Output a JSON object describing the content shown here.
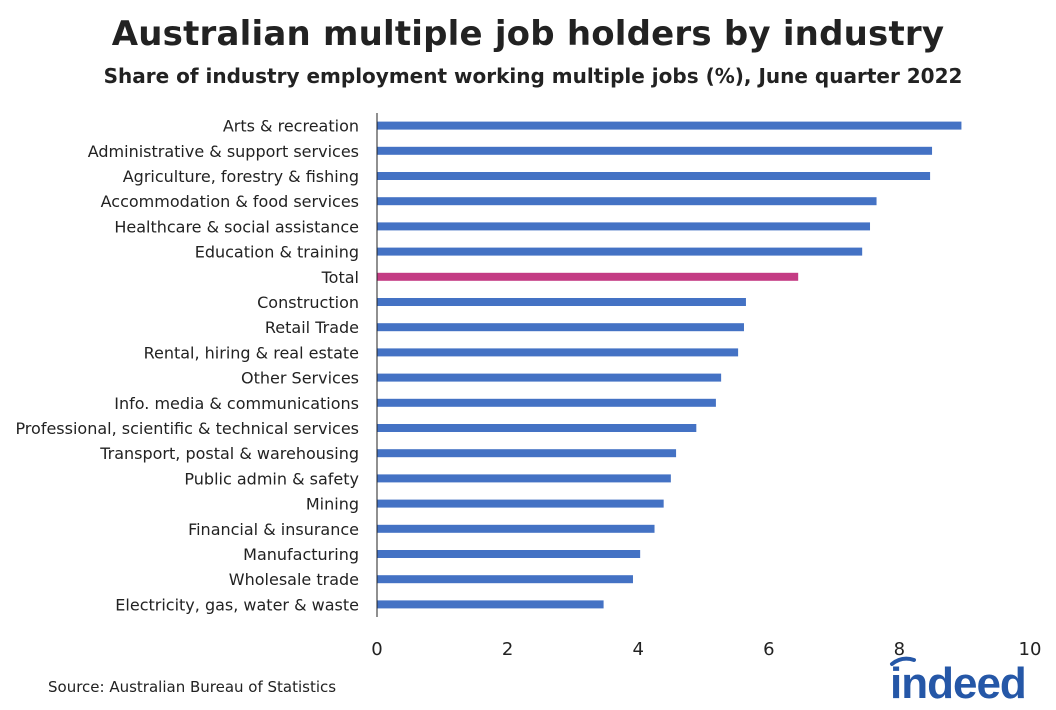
{
  "chart_data": {
    "type": "bar",
    "orientation": "horizontal",
    "title": "Australian multiple job holders by industry",
    "subtitle": "Share of industry employment working multiple jobs (%), June quarter 2022",
    "categories": [
      "Arts & recreation",
      "Administrative & support services",
      "Agriculture, forestry & fishing",
      "Accommodation & food services",
      "Healthcare & social assistance",
      "Education & training",
      "Total",
      "Construction",
      "Retail Trade",
      "Rental, hiring & real estate",
      "Other Services",
      "Info. media & communications",
      "Professional, scientific & technical services",
      "Transport, postal & warehousing",
      "Public admin & safety",
      "Mining",
      "Financial & insurance",
      "Manufacturing",
      "Wholesale trade",
      "Electricity, gas, water & waste"
    ],
    "values": [
      8.95,
      8.5,
      8.47,
      7.65,
      7.55,
      7.43,
      6.45,
      5.65,
      5.62,
      5.53,
      5.27,
      5.19,
      4.89,
      4.58,
      4.5,
      4.39,
      4.25,
      4.03,
      3.92,
      3.47
    ],
    "highlight_category": "Total",
    "colors": {
      "bar": "#4472C4",
      "highlight": "#C43C84",
      "axis": "#222222"
    },
    "xlim": [
      0,
      10
    ],
    "xticks": [
      0,
      2,
      4,
      6,
      8,
      10
    ],
    "xlabel": "",
    "ylabel": "",
    "grid": false,
    "legend": "none"
  },
  "footer": {
    "source": "Source: Australian Bureau of Statistics",
    "logo_text": "indeed",
    "logo_color": "#2557A7"
  }
}
